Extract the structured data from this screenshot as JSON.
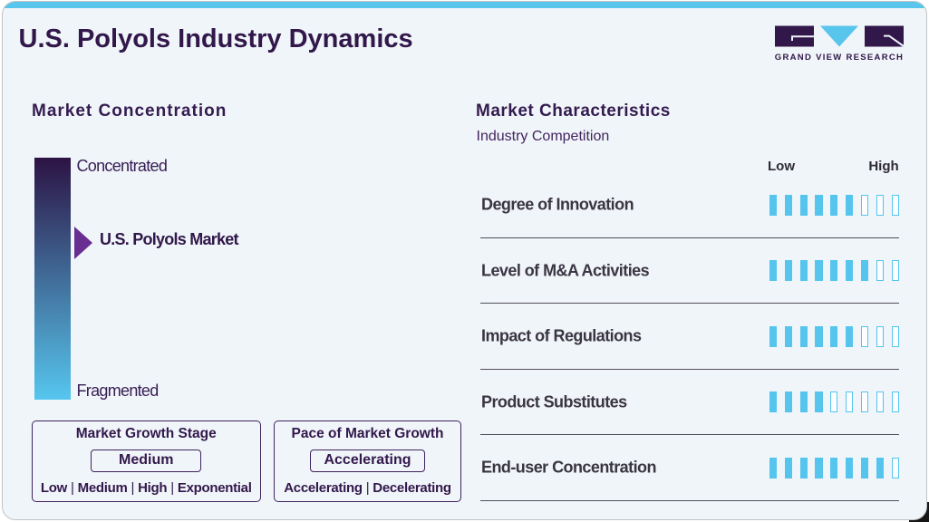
{
  "header": {
    "title": "U.S. Polyols Industry Dynamics",
    "logo_text": "GRAND VIEW RESEARCH"
  },
  "colors": {
    "accent_blue": "#58c5ec",
    "brand_purple": "#31174a",
    "marker_purple": "#6a2e92",
    "gradient_top": "#2c1344",
    "gradient_bottom": "#56c6ee",
    "card_background": "#f0f5f9"
  },
  "concentration": {
    "title": "Market Concentration",
    "scale_top_label": "Concentrated",
    "scale_bottom_label": "Fragmented",
    "marker_label": "U.S. Polyols Market",
    "marker_position_pct": 35
  },
  "growth_boxes": [
    {
      "title": "Market Growth Stage",
      "value": "Medium",
      "options": [
        "Low",
        "Medium",
        "High",
        "Exponential"
      ]
    },
    {
      "title": "Pace of Market Growth",
      "value": "Accelerating",
      "options": [
        "Accelerating",
        "Decelerating"
      ]
    }
  ],
  "characteristics": {
    "title": "Market Characteristics",
    "subtitle": "Industry Competition",
    "scale_min_label": "Low",
    "scale_max_label": "High",
    "segments_total": 9,
    "rows": [
      {
        "label": "Degree of Innovation",
        "filled": 6
      },
      {
        "label": "Level of M&A Activities",
        "filled": 7
      },
      {
        "label": "Impact of Regulations",
        "filled": 6
      },
      {
        "label": "Product Substitutes",
        "filled": 4
      },
      {
        "label": "End-user Concentration",
        "filled": 8
      }
    ]
  },
  "chart_data": [
    {
      "type": "scale",
      "title": "Market Concentration",
      "axis": {
        "top_label": "Concentrated",
        "bottom_label": "Fragmented"
      },
      "marker": {
        "label": "U.S. Polyols Market",
        "position_from_top_pct": 35
      },
      "annotations": [
        {
          "group": "Market Growth Stage",
          "selected": "Medium",
          "options": [
            "Low",
            "Medium",
            "High",
            "Exponential"
          ]
        },
        {
          "group": "Pace of Market Growth",
          "selected": "Accelerating",
          "options": [
            "Accelerating",
            "Decelerating"
          ]
        }
      ]
    },
    {
      "type": "bar",
      "title": "Market Characteristics",
      "subtitle": "Industry Competition",
      "xlabel": "",
      "ylabel": "",
      "axis_range": {
        "min_label": "Low",
        "max_label": "High",
        "segments_total": 9
      },
      "categories": [
        "Degree of Innovation",
        "Level of M&A Activities",
        "Impact of Regulations",
        "Product Substitutes",
        "End-user Concentration"
      ],
      "values": [
        6,
        7,
        6,
        4,
        8
      ]
    }
  ]
}
